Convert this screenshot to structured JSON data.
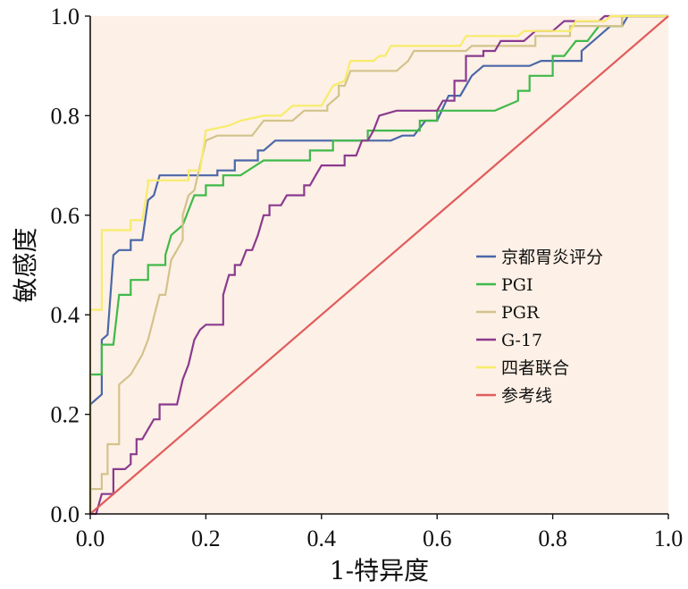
{
  "chart_data": {
    "type": "line",
    "title": "",
    "xlabel": "1-特异度",
    "ylabel": "敏感度",
    "xlim": [
      0,
      1
    ],
    "ylim": [
      0,
      1
    ],
    "xticks": [
      "0.0",
      "0.2",
      "0.4",
      "0.6",
      "0.8",
      "1.0"
    ],
    "yticks": [
      "0.0",
      "0.2",
      "0.4",
      "0.6",
      "0.8",
      "1.0"
    ],
    "legend_position": "right-middle",
    "plot_background": "#fdf0e6",
    "series": [
      {
        "name": "京都胃炎评分",
        "color": "#4a67a8",
        "points": [
          [
            0,
            0
          ],
          [
            0,
            0.22
          ],
          [
            0.02,
            0.24
          ],
          [
            0.02,
            0.35
          ],
          [
            0.03,
            0.36
          ],
          [
            0.04,
            0.52
          ],
          [
            0.05,
            0.53
          ],
          [
            0.07,
            0.53
          ],
          [
            0.07,
            0.55
          ],
          [
            0.09,
            0.55
          ],
          [
            0.1,
            0.63
          ],
          [
            0.11,
            0.64
          ],
          [
            0.12,
            0.68
          ],
          [
            0.22,
            0.68
          ],
          [
            0.22,
            0.69
          ],
          [
            0.25,
            0.69
          ],
          [
            0.25,
            0.71
          ],
          [
            0.29,
            0.71
          ],
          [
            0.29,
            0.73
          ],
          [
            0.3,
            0.73
          ],
          [
            0.32,
            0.75
          ],
          [
            0.52,
            0.75
          ],
          [
            0.54,
            0.76
          ],
          [
            0.56,
            0.76
          ],
          [
            0.58,
            0.79
          ],
          [
            0.6,
            0.79
          ],
          [
            0.62,
            0.84
          ],
          [
            0.64,
            0.84
          ],
          [
            0.66,
            0.88
          ],
          [
            0.68,
            0.9
          ],
          [
            0.76,
            0.9
          ],
          [
            0.78,
            0.91
          ],
          [
            0.85,
            0.91
          ],
          [
            0.85,
            0.93
          ],
          [
            0.87,
            0.95
          ],
          [
            0.9,
            0.98
          ],
          [
            0.92,
            0.98
          ],
          [
            0.93,
            1
          ],
          [
            1,
            1
          ]
        ]
      },
      {
        "name": "PGⅠ",
        "color": "#3fb94a",
        "points": [
          [
            0,
            0
          ],
          [
            0,
            0.28
          ],
          [
            0.02,
            0.28
          ],
          [
            0.02,
            0.34
          ],
          [
            0.04,
            0.34
          ],
          [
            0.05,
            0.44
          ],
          [
            0.07,
            0.44
          ],
          [
            0.07,
            0.47
          ],
          [
            0.1,
            0.47
          ],
          [
            0.1,
            0.5
          ],
          [
            0.13,
            0.5
          ],
          [
            0.13,
            0.52
          ],
          [
            0.14,
            0.56
          ],
          [
            0.16,
            0.58
          ],
          [
            0.18,
            0.64
          ],
          [
            0.2,
            0.64
          ],
          [
            0.2,
            0.66
          ],
          [
            0.23,
            0.66
          ],
          [
            0.23,
            0.68
          ],
          [
            0.26,
            0.68
          ],
          [
            0.3,
            0.71
          ],
          [
            0.38,
            0.71
          ],
          [
            0.38,
            0.73
          ],
          [
            0.42,
            0.73
          ],
          [
            0.42,
            0.75
          ],
          [
            0.48,
            0.75
          ],
          [
            0.48,
            0.77
          ],
          [
            0.57,
            0.77
          ],
          [
            0.57,
            0.79
          ],
          [
            0.6,
            0.79
          ],
          [
            0.6,
            0.81
          ],
          [
            0.7,
            0.81
          ],
          [
            0.74,
            0.83
          ],
          [
            0.74,
            0.85
          ],
          [
            0.76,
            0.85
          ],
          [
            0.76,
            0.88
          ],
          [
            0.8,
            0.88
          ],
          [
            0.8,
            0.92
          ],
          [
            0.82,
            0.92
          ],
          [
            0.84,
            0.95
          ],
          [
            0.86,
            0.95
          ],
          [
            0.88,
            0.98
          ],
          [
            0.92,
            0.98
          ],
          [
            0.92,
            1
          ],
          [
            1,
            1
          ]
        ]
      },
      {
        "name": "PGR",
        "color": "#d2c38c",
        "points": [
          [
            0,
            0
          ],
          [
            0,
            0.05
          ],
          [
            0.02,
            0.05
          ],
          [
            0.02,
            0.08
          ],
          [
            0.03,
            0.08
          ],
          [
            0.03,
            0.14
          ],
          [
            0.05,
            0.14
          ],
          [
            0.05,
            0.26
          ],
          [
            0.07,
            0.28
          ],
          [
            0.08,
            0.3
          ],
          [
            0.09,
            0.32
          ],
          [
            0.1,
            0.35
          ],
          [
            0.12,
            0.44
          ],
          [
            0.13,
            0.44
          ],
          [
            0.14,
            0.51
          ],
          [
            0.15,
            0.53
          ],
          [
            0.16,
            0.55
          ],
          [
            0.16,
            0.6
          ],
          [
            0.17,
            0.64
          ],
          [
            0.18,
            0.65
          ],
          [
            0.2,
            0.75
          ],
          [
            0.22,
            0.76
          ],
          [
            0.28,
            0.76
          ],
          [
            0.3,
            0.79
          ],
          [
            0.35,
            0.79
          ],
          [
            0.37,
            0.81
          ],
          [
            0.41,
            0.81
          ],
          [
            0.41,
            0.82
          ],
          [
            0.43,
            0.84
          ],
          [
            0.43,
            0.86
          ],
          [
            0.44,
            0.86
          ],
          [
            0.45,
            0.89
          ],
          [
            0.53,
            0.89
          ],
          [
            0.55,
            0.91
          ],
          [
            0.56,
            0.93
          ],
          [
            0.65,
            0.93
          ],
          [
            0.66,
            0.94
          ],
          [
            0.77,
            0.94
          ],
          [
            0.77,
            0.96
          ],
          [
            0.83,
            0.96
          ],
          [
            0.83,
            0.98
          ],
          [
            0.92,
            0.98
          ],
          [
            0.92,
            1
          ],
          [
            1,
            1
          ]
        ]
      },
      {
        "name": "G-17",
        "color": "#8a3a8f",
        "points": [
          [
            0,
            0
          ],
          [
            0.01,
            0
          ],
          [
            0.02,
            0.04
          ],
          [
            0.04,
            0.04
          ],
          [
            0.04,
            0.09
          ],
          [
            0.06,
            0.09
          ],
          [
            0.07,
            0.1
          ],
          [
            0.07,
            0.12
          ],
          [
            0.08,
            0.12
          ],
          [
            0.08,
            0.15
          ],
          [
            0.09,
            0.15
          ],
          [
            0.1,
            0.17
          ],
          [
            0.11,
            0.19
          ],
          [
            0.12,
            0.19
          ],
          [
            0.12,
            0.22
          ],
          [
            0.15,
            0.22
          ],
          [
            0.16,
            0.27
          ],
          [
            0.17,
            0.3
          ],
          [
            0.18,
            0.35
          ],
          [
            0.19,
            0.37
          ],
          [
            0.2,
            0.38
          ],
          [
            0.23,
            0.38
          ],
          [
            0.23,
            0.44
          ],
          [
            0.24,
            0.48
          ],
          [
            0.25,
            0.48
          ],
          [
            0.25,
            0.5
          ],
          [
            0.26,
            0.5
          ],
          [
            0.27,
            0.53
          ],
          [
            0.28,
            0.53
          ],
          [
            0.29,
            0.56
          ],
          [
            0.3,
            0.6
          ],
          [
            0.31,
            0.6
          ],
          [
            0.31,
            0.62
          ],
          [
            0.33,
            0.62
          ],
          [
            0.34,
            0.64
          ],
          [
            0.37,
            0.64
          ],
          [
            0.37,
            0.66
          ],
          [
            0.38,
            0.66
          ],
          [
            0.39,
            0.68
          ],
          [
            0.4,
            0.7
          ],
          [
            0.44,
            0.7
          ],
          [
            0.44,
            0.72
          ],
          [
            0.46,
            0.72
          ],
          [
            0.47,
            0.75
          ],
          [
            0.48,
            0.75
          ],
          [
            0.49,
            0.77
          ],
          [
            0.5,
            0.8
          ],
          [
            0.53,
            0.81
          ],
          [
            0.6,
            0.81
          ],
          [
            0.61,
            0.83
          ],
          [
            0.63,
            0.83
          ],
          [
            0.63,
            0.87
          ],
          [
            0.65,
            0.87
          ],
          [
            0.65,
            0.92
          ],
          [
            0.68,
            0.92
          ],
          [
            0.68,
            0.93
          ],
          [
            0.7,
            0.93
          ],
          [
            0.71,
            0.95
          ],
          [
            0.75,
            0.95
          ],
          [
            0.77,
            0.97
          ],
          [
            0.8,
            0.97
          ],
          [
            0.82,
            0.99
          ],
          [
            0.88,
            0.99
          ],
          [
            0.89,
            1
          ],
          [
            1,
            1
          ]
        ]
      },
      {
        "name": "四者联合",
        "color": "#f7ec6a",
        "points": [
          [
            0,
            0
          ],
          [
            0,
            0.41
          ],
          [
            0.02,
            0.41
          ],
          [
            0.02,
            0.57
          ],
          [
            0.07,
            0.57
          ],
          [
            0.07,
            0.59
          ],
          [
            0.09,
            0.59
          ],
          [
            0.1,
            0.66
          ],
          [
            0.1,
            0.67
          ],
          [
            0.17,
            0.67
          ],
          [
            0.17,
            0.69
          ],
          [
            0.19,
            0.69
          ],
          [
            0.2,
            0.77
          ],
          [
            0.24,
            0.78
          ],
          [
            0.26,
            0.79
          ],
          [
            0.3,
            0.8
          ],
          [
            0.33,
            0.8
          ],
          [
            0.35,
            0.82
          ],
          [
            0.4,
            0.82
          ],
          [
            0.42,
            0.86
          ],
          [
            0.44,
            0.87
          ],
          [
            0.45,
            0.91
          ],
          [
            0.49,
            0.91
          ],
          [
            0.5,
            0.92
          ],
          [
            0.51,
            0.92
          ],
          [
            0.52,
            0.94
          ],
          [
            0.64,
            0.94
          ],
          [
            0.65,
            0.96
          ],
          [
            0.74,
            0.96
          ],
          [
            0.75,
            0.97
          ],
          [
            0.83,
            0.97
          ],
          [
            0.84,
            0.99
          ],
          [
            0.89,
            0.99
          ],
          [
            0.9,
            1
          ],
          [
            1,
            1
          ]
        ]
      },
      {
        "name": "参考线",
        "color": "#e05c5c",
        "points": [
          [
            0,
            0
          ],
          [
            1,
            1
          ]
        ]
      }
    ]
  }
}
